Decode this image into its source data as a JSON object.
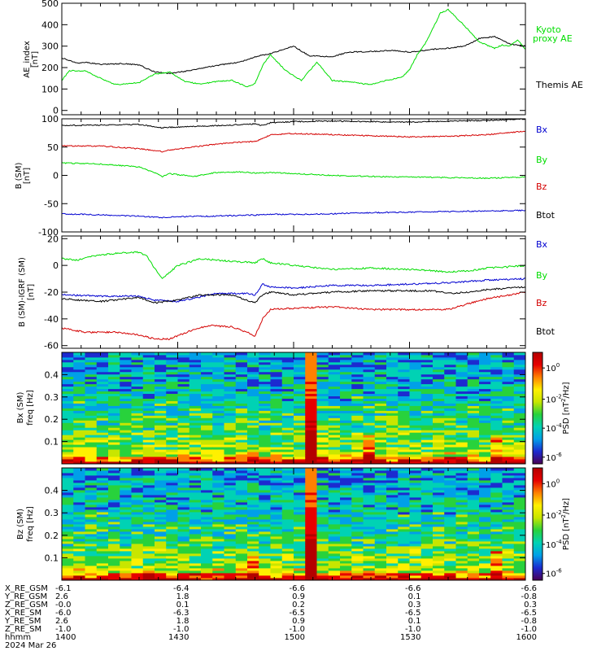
{
  "colors": {
    "black": "#000000",
    "red": "#d40000",
    "green": "#00dd00",
    "blue": "#0000d0",
    "colormap": [
      "#4b0055",
      "#1c2bd0",
      "#00a0e8",
      "#00d2b4",
      "#28d23c",
      "#c8e600",
      "#fff000",
      "#ff8000",
      "#e60000",
      "#b40000"
    ]
  },
  "chart_data": [
    {
      "type": "line",
      "panel": "ae",
      "ylabel": "AE_index",
      "yunit": "[nT]",
      "ylim": [
        -20,
        500
      ],
      "yticks": [
        0,
        100,
        200,
        300,
        400,
        500
      ],
      "xlim": [
        0,
        120
      ],
      "series": [
        {
          "name": "Themis AE",
          "color": "#000000",
          "x": [
            0,
            4,
            6,
            10,
            16,
            20,
            24,
            28,
            32,
            36,
            40,
            46,
            50,
            54,
            60,
            64,
            70,
            74,
            80,
            86,
            90,
            96,
            100,
            104,
            106,
            108,
            112,
            116,
            120
          ],
          "values": [
            245,
            220,
            225,
            215,
            218,
            212,
            180,
            172,
            183,
            195,
            210,
            225,
            250,
            265,
            300,
            255,
            250,
            272,
            275,
            280,
            272,
            285,
            290,
            300,
            315,
            335,
            345,
            310,
            300
          ]
        },
        {
          "name": "Kyoto proxy AE",
          "color": "#00dd00",
          "x": [
            0,
            2,
            6,
            10,
            14,
            20,
            24,
            28,
            32,
            36,
            40,
            44,
            48,
            50,
            52,
            54,
            58,
            62,
            66,
            70,
            76,
            80,
            84,
            88,
            90,
            92,
            94,
            96,
            98,
            100,
            104,
            106,
            108,
            112,
            114,
            116,
            118,
            120
          ],
          "values": [
            140,
            185,
            185,
            150,
            120,
            130,
            170,
            178,
            135,
            122,
            135,
            140,
            110,
            125,
            210,
            260,
            185,
            140,
            225,
            140,
            130,
            120,
            140,
            155,
            190,
            260,
            310,
            380,
            455,
            470,
            400,
            360,
            320,
            290,
            305,
            300,
            330,
            285
          ]
        }
      ]
    },
    {
      "type": "line",
      "panel": "b_sm",
      "ylabel": "B (SM)",
      "yunit": "[nT]",
      "ylim": [
        -100,
        100
      ],
      "yticks": [
        -100,
        -50,
        0,
        50,
        100
      ],
      "xlim": [
        0,
        120
      ],
      "series": [
        {
          "name": "Bx",
          "color": "#000000",
          "x": [
            0,
            10,
            20,
            24,
            26,
            28,
            36,
            44,
            50,
            52,
            54,
            60,
            70,
            80,
            90,
            100,
            110,
            120
          ],
          "values": [
            88,
            89,
            90,
            86,
            84,
            85,
            87,
            89,
            91,
            88,
            93,
            95,
            96,
            95,
            94,
            96,
            97,
            100
          ]
        },
        {
          "name": "By",
          "color": "#d40000",
          "x": [
            0,
            10,
            20,
            24,
            26,
            28,
            36,
            44,
            50,
            52,
            54,
            60,
            70,
            80,
            90,
            100,
            110,
            120
          ],
          "values": [
            52,
            52,
            47,
            44,
            42,
            45,
            52,
            58,
            60,
            65,
            72,
            74,
            72,
            70,
            68,
            69,
            72,
            78
          ]
        },
        {
          "name": "Bz",
          "color": "#00dd00",
          "x": [
            0,
            10,
            20,
            24,
            26,
            28,
            34,
            40,
            46,
            50,
            54,
            60,
            70,
            80,
            90,
            100,
            110,
            120
          ],
          "values": [
            22,
            20,
            15,
            5,
            -2,
            3,
            -2,
            5,
            6,
            4,
            5,
            3,
            0,
            -2,
            -3,
            -4,
            -5,
            -3
          ]
        },
        {
          "name": "Btot",
          "color": "#0000d0",
          "x": [
            0,
            10,
            20,
            26,
            30,
            40,
            50,
            54,
            60,
            70,
            80,
            90,
            100,
            110,
            120
          ],
          "values": [
            -68,
            -70,
            -72,
            -75,
            -73,
            -72,
            -70,
            -69,
            -69,
            -68,
            -66,
            -65,
            -64,
            -63,
            -62
          ]
        }
      ]
    },
    {
      "type": "line",
      "panel": "b_minus_igrf",
      "ylabel": "B (SM)-IGRF (SM)",
      "yunit": "[nT]",
      "ylim": [
        -62,
        22
      ],
      "yticks": [
        -60,
        -40,
        -20,
        0,
        20
      ],
      "xlim": [
        0,
        120
      ],
      "series": [
        {
          "name": "Bx",
          "color": "#0000d0",
          "x": [
            0,
            10,
            20,
            24,
            30,
            40,
            48,
            50,
            52,
            54,
            60,
            70,
            80,
            90,
            100,
            110,
            120
          ],
          "values": [
            -22,
            -23,
            -23,
            -26,
            -27,
            -21,
            -21,
            -22,
            -14,
            -16,
            -17,
            -15,
            -15,
            -14,
            -13,
            -11,
            -10
          ]
        },
        {
          "name": "By",
          "color": "#00dd00",
          "x": [
            0,
            4,
            8,
            14,
            20,
            22,
            24,
            26,
            30,
            36,
            44,
            50,
            52,
            54,
            60,
            70,
            80,
            90,
            96,
            100,
            106,
            110,
            116,
            120
          ],
          "values": [
            5,
            4,
            7,
            9,
            10,
            7,
            -2,
            -10,
            0,
            5,
            3,
            2,
            5,
            2,
            0,
            -3,
            -2,
            -3,
            -4,
            -5,
            -4,
            -2,
            -1,
            0
          ]
        },
        {
          "name": "Bz",
          "color": "#d40000",
          "x": [
            0,
            6,
            14,
            20,
            24,
            28,
            34,
            38,
            44,
            48,
            50,
            52,
            54,
            60,
            70,
            80,
            90,
            100,
            106,
            110,
            116,
            120
          ],
          "values": [
            -47,
            -50,
            -50,
            -52,
            -55,
            -55,
            -48,
            -45,
            -46,
            -50,
            -53,
            -40,
            -33,
            -32,
            -31,
            -33,
            -33,
            -33,
            -28,
            -25,
            -22,
            -20
          ]
        },
        {
          "name": "Btot",
          "color": "#000000",
          "x": [
            0,
            10,
            20,
            24,
            30,
            36,
            44,
            50,
            52,
            54,
            60,
            70,
            80,
            90,
            96,
            100,
            106,
            110,
            116,
            120
          ],
          "values": [
            -25,
            -27,
            -24,
            -28,
            -26,
            -22,
            -22,
            -28,
            -22,
            -20,
            -22,
            -20,
            -19,
            -19,
            -19,
            -21,
            -20,
            -18,
            -17,
            -16
          ]
        }
      ]
    },
    {
      "type": "heatmap",
      "panel": "bx_psd",
      "ylabel": "Bx (SM)",
      "ylabel2": "freq",
      "yunit": "[Hz]",
      "ylim": [
        0,
        0.5
      ],
      "yticks": [
        0.1,
        0.2,
        0.3,
        0.4
      ],
      "colorbar_label": "PSD [nT^2/Hz]",
      "colorbar_ticks": [
        "10^0",
        "10^-2",
        "10^-4",
        "10^-6"
      ],
      "burst_columns": [
        21
      ],
      "event_columns": [
        26,
        37
      ]
    },
    {
      "type": "heatmap",
      "panel": "bz_psd",
      "ylabel": "Bz (SM)",
      "ylabel2": "freq",
      "yunit": "[Hz]",
      "ylim": [
        0,
        0.5
      ],
      "yticks": [
        0.1,
        0.2,
        0.3,
        0.4
      ],
      "colorbar_label": "PSD [nT^2/Hz]",
      "colorbar_ticks": [
        "10^0",
        "10^-2",
        "10^-4",
        "10^-6"
      ],
      "burst_columns": [
        21
      ],
      "event_columns": [
        16,
        37
      ]
    }
  ],
  "x_axis": {
    "row_labels": [
      "X_RE_GSM",
      "Y_RE_GSM",
      "Z_RE_GSM",
      "X_RE_SM",
      "Y_RE_SM",
      "Z_RE_SM",
      "hhmm"
    ],
    "date": "2024 Mar 26",
    "columns": [
      {
        "values": [
          "-6.1",
          "2.6",
          "-0.0",
          "-6.0",
          "2.6",
          "-1.0",
          "1400"
        ]
      },
      {
        "values": [
          "-6.4",
          "1.8",
          "0.1",
          "-6.3",
          "1.8",
          "-1.0",
          "1430"
        ]
      },
      {
        "values": [
          "-6.6",
          "0.9",
          "0.2",
          "-6.5",
          "0.9",
          "-1.0",
          "1500"
        ]
      },
      {
        "values": [
          "-6.6",
          "0.1",
          "0.3",
          "-6.5",
          "0.1",
          "-1.0",
          "1530"
        ]
      },
      {
        "values": [
          "-6.6",
          "-0.8",
          "0.3",
          "-6.5",
          "-0.8",
          "-1.0",
          "1600"
        ]
      }
    ]
  }
}
